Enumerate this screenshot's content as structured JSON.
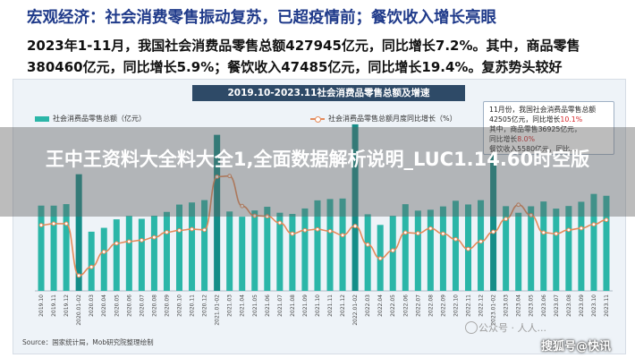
{
  "headline": "宏观经济：社会消费零售振动复苏，已超疫情前；餐饮收入增长亮眼",
  "paragraph": {
    "line1": "2023年1-11月，我国社会消费品零售总额427945亿元，同比增长7.2%。其中，商品零售",
    "line2": "380460亿元，同比增长5.9%；餐饮收入47485亿元，同比增长19.4%。复苏势头较好"
  },
  "chart_data": {
    "type": "bar",
    "title": "2019.10-2023.11社会消费品零售总额及增速",
    "legend": [
      "社会消费品零售总额（亿元）",
      "社会消费品零售总额月度同比增长（%）"
    ],
    "legend_position": "top",
    "categories": [
      "2019.10",
      "2019.11",
      "2019.12",
      "2020.01-02",
      "2020.03",
      "2020.04",
      "2020.05",
      "2020.06",
      "2020.07",
      "2020.08",
      "2020.09",
      "2020.10",
      "2020.11",
      "2020.12",
      "2021.01-02",
      "2021.03",
      "2021.04",
      "2021.05",
      "2021.06",
      "2021.07",
      "2021.08",
      "2021.09",
      "2021.10",
      "2021.11",
      "2021.12",
      "2022.01-02",
      "2022.03",
      "2022.04",
      "2022.05",
      "2022.06",
      "2022.07",
      "2022.08",
      "2022.09",
      "2022.10",
      "2022.11",
      "2022.12",
      "2023.01-02",
      "2023.03",
      "2023.04",
      "2023.05",
      "2023.06",
      "2023.07",
      "2023.08",
      "2023.09",
      "2023.10",
      "2023.11"
    ],
    "series": [
      {
        "name": "社会消费品零售总额（亿元）",
        "type": "bar",
        "values": [
          38104,
          38094,
          38777,
          52130,
          26450,
          28178,
          31973,
          33526,
          32203,
          33571,
          35295,
          38576,
          39514,
          40566,
          69737,
          35484,
          33153,
          35945,
          37586,
          34925,
          34395,
          36833,
          40454,
          41043,
          41269,
          74426,
          34233,
          29483,
          33547,
          38742,
          35870,
          36258,
          37745,
          40271,
          38615,
          40542,
          77067,
          37855,
          34910,
          37803,
          39951,
          36761,
          37933,
          39826,
          43333,
          42505
        ]
      },
      {
        "name": "社会消费品零售总额月度同比增长（%）",
        "type": "line",
        "values": [
          7.2,
          8.0,
          8.0,
          -20.5,
          -15.8,
          -7.5,
          -2.8,
          -1.8,
          -1.1,
          0.5,
          3.3,
          4.3,
          5.0,
          4.6,
          33.8,
          34.2,
          17.7,
          12.4,
          12.1,
          8.5,
          2.5,
          4.4,
          4.9,
          3.9,
          1.7,
          6.7,
          -3.5,
          -11.1,
          -6.7,
          3.1,
          2.7,
          5.4,
          2.5,
          -0.5,
          -5.9,
          -1.8,
          3.5,
          10.6,
          18.4,
          12.7,
          3.1,
          2.5,
          4.6,
          5.5,
          7.6,
          10.1
        ]
      }
    ],
    "ylim_bar": [
      0,
      80000
    ],
    "ylim_line": [
      -24,
      36
    ],
    "annotation": {
      "line1": "11月份，我国社会消费品零售总额",
      "line2_prefix": "42505亿元，同比增长",
      "line2_highlight": "10.1%",
      "line3": "其中，商品零售36925亿元，",
      "line4_prefix": "同比增长",
      "line4_highlight": "8.0%",
      "line5": "餐饮收入5580亿元，同比..."
    },
    "grid": false
  },
  "source": "Source：国家统计局，Mob研究院整理绘制",
  "overlay_banner": "王中王资料大全料大全1,全面数据解析说明_LUC1.14.60时空版",
  "watermarks": {
    "site": "公众号 · 人人...",
    "account": "搜狐号@快讯"
  },
  "colors": {
    "bar": "#2bb6a8",
    "bar_dark": "#158d88",
    "line": "#e48a5a",
    "title_bar": "#2e4a67",
    "headline": "#1f3a8a"
  }
}
